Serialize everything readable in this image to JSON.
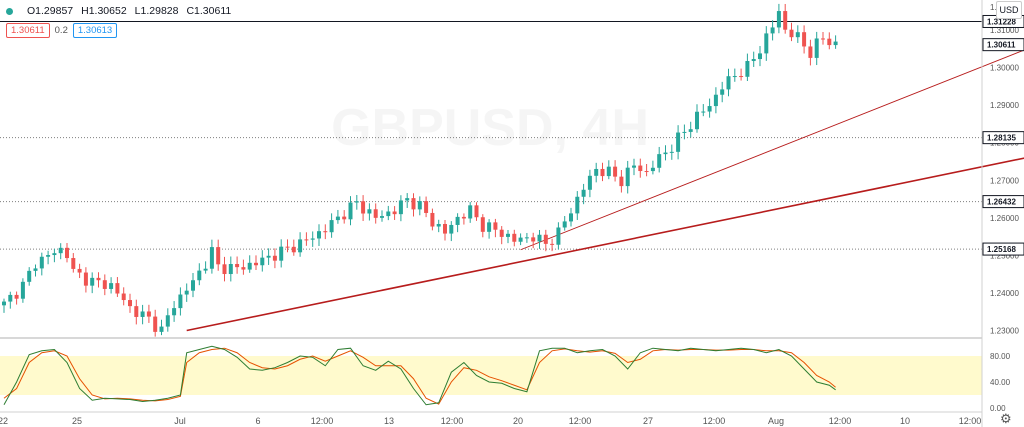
{
  "symbol_watermark": "GBPUSD, 4H",
  "ohlc": {
    "open": "O1.29857",
    "high": "H1.30652",
    "low": "L1.29828",
    "close": "C1.30611"
  },
  "price_row": {
    "bid": "1.30611",
    "spread": "0.2",
    "ask": "1.30613"
  },
  "currency_button": "USD",
  "colors": {
    "up": "#26a69a",
    "down": "#ef5350",
    "trendline": "#b71c1c",
    "stoch_k": "#2e7d32",
    "stoch_d": "#e65100",
    "stoch_band": "#fff9c4"
  },
  "chart_data": {
    "type": "candlestick",
    "price_ylim": [
      1.228,
      1.318
    ],
    "price_ticks": [
      "1.31000",
      "1.30000",
      "1.29000",
      "1.28000",
      "1.27000",
      "1.26000",
      "1.25000",
      "1.24000",
      "1.23000"
    ],
    "horizontal_levels": [
      {
        "value": 1.31228,
        "label": "1.31228",
        "style": "solid"
      },
      {
        "value": 1.28135,
        "label": "1.28135",
        "style": "dotted"
      },
      {
        "value": 1.26432,
        "label": "1.26432",
        "style": "dotted"
      },
      {
        "value": 1.25168,
        "label": "1.25168",
        "style": "dotted"
      }
    ],
    "current_price": {
      "value": 1.30611,
      "label": "1.30611"
    },
    "top_tick_label": "1.32000",
    "x_ticks": [
      "22",
      "25",
      "Jul",
      "6",
      "12:00",
      "13",
      "12:00",
      "20",
      "12:00",
      "27",
      "12:00",
      "Aug",
      "12:00",
      "10",
      "12:00"
    ],
    "close_path": [
      [
        0,
        1.237
      ],
      [
        3,
        1.242
      ],
      [
        5,
        1.248
      ],
      [
        7,
        1.25
      ],
      [
        9,
        1.2515
      ],
      [
        10,
        1.2505
      ],
      [
        11,
        1.2455
      ],
      [
        14,
        1.243
      ],
      [
        17,
        1.242
      ],
      [
        20,
        1.236
      ],
      [
        23,
        1.233
      ],
      [
        25,
        1.23
      ],
      [
        27,
        1.237
      ],
      [
        30,
        1.243
      ],
      [
        32,
        1.248
      ],
      [
        33,
        1.251
      ],
      [
        34,
        1.247
      ],
      [
        37,
        1.2465
      ],
      [
        40,
        1.248
      ],
      [
        44,
        1.251
      ],
      [
        48,
        1.254
      ],
      [
        51,
        1.257
      ],
      [
        53,
        1.26
      ],
      [
        56,
        1.264
      ],
      [
        59,
        1.26
      ],
      [
        62,
        1.262
      ],
      [
        64,
        1.265
      ],
      [
        66,
        1.263
      ],
      [
        68,
        1.259
      ],
      [
        70,
        1.256
      ],
      [
        72,
        1.26
      ],
      [
        74,
        1.262
      ],
      [
        76,
        1.258
      ],
      [
        79,
        1.256
      ],
      [
        81,
        1.254
      ],
      [
        84,
        1.255
      ],
      [
        86,
        1.253
      ],
      [
        88,
        1.256
      ],
      [
        90,
        1.262
      ],
      [
        92,
        1.268
      ],
      [
        94,
        1.273
      ],
      [
        96,
        1.272
      ],
      [
        98,
        1.27
      ],
      [
        100,
        1.274
      ],
      [
        102,
        1.272
      ],
      [
        104,
        1.276
      ],
      [
        106,
        1.279
      ],
      [
        108,
        1.283
      ],
      [
        110,
        1.287
      ],
      [
        112,
        1.29
      ],
      [
        114,
        1.295
      ],
      [
        116,
        1.298
      ],
      [
        118,
        1.3
      ],
      [
        120,
        1.305
      ],
      [
        122,
        1.311
      ],
      [
        123,
        1.315
      ],
      [
        124,
        1.31
      ],
      [
        126,
        1.308
      ],
      [
        128,
        1.304
      ],
      [
        130,
        1.308
      ],
      [
        131,
        1.307
      ],
      [
        132,
        1.306
      ]
    ],
    "trendlines": [
      {
        "from": [
          29,
          1.23
        ],
        "to": [
          197,
          1.288
        ]
      },
      {
        "from": [
          82,
          1.2515
        ],
        "to": [
          197,
          1.328
        ]
      }
    ],
    "stochastic": {
      "ylim": [
        0,
        100
      ],
      "ticks": [
        "80.00",
        "40.00",
        "0.00"
      ],
      "band": [
        20,
        80
      ],
      "k": [
        [
          0,
          5
        ],
        [
          2,
          40
        ],
        [
          4,
          82
        ],
        [
          6,
          88
        ],
        [
          8,
          90
        ],
        [
          10,
          70
        ],
        [
          12,
          30
        ],
        [
          14,
          12
        ],
        [
          16,
          15
        ],
        [
          18,
          14
        ],
        [
          20,
          13
        ],
        [
          22,
          10
        ],
        [
          24,
          12
        ],
        [
          26,
          15
        ],
        [
          28,
          20
        ],
        [
          29,
          85
        ],
        [
          31,
          90
        ],
        [
          33,
          95
        ],
        [
          35,
          90
        ],
        [
          37,
          78
        ],
        [
          39,
          60
        ],
        [
          41,
          58
        ],
        [
          43,
          62
        ],
        [
          45,
          70
        ],
        [
          47,
          80
        ],
        [
          49,
          78
        ],
        [
          51,
          65
        ],
        [
          53,
          90
        ],
        [
          55,
          92
        ],
        [
          57,
          65
        ],
        [
          59,
          58
        ],
        [
          61,
          72
        ],
        [
          63,
          60
        ],
        [
          65,
          30
        ],
        [
          67,
          5
        ],
        [
          69,
          8
        ],
        [
          71,
          55
        ],
        [
          73,
          70
        ],
        [
          75,
          50
        ],
        [
          77,
          40
        ],
        [
          79,
          38
        ],
        [
          81,
          30
        ],
        [
          83,
          25
        ],
        [
          85,
          88
        ],
        [
          87,
          92
        ],
        [
          89,
          92
        ],
        [
          91,
          85
        ],
        [
          93,
          88
        ],
        [
          95,
          90
        ],
        [
          97,
          80
        ],
        [
          99,
          60
        ],
        [
          101,
          85
        ],
        [
          103,
          92
        ],
        [
          105,
          90
        ],
        [
          107,
          88
        ],
        [
          109,
          92
        ],
        [
          111,
          90
        ],
        [
          113,
          88
        ],
        [
          115,
          90
        ],
        [
          117,
          92
        ],
        [
          119,
          90
        ],
        [
          121,
          85
        ],
        [
          123,
          90
        ],
        [
          125,
          80
        ],
        [
          127,
          60
        ],
        [
          129,
          40
        ],
        [
          131,
          35
        ],
        [
          132,
          28
        ]
      ],
      "d": [
        [
          0,
          15
        ],
        [
          2,
          30
        ],
        [
          4,
          70
        ],
        [
          6,
          85
        ],
        [
          8,
          88
        ],
        [
          10,
          80
        ],
        [
          12,
          45
        ],
        [
          14,
          20
        ],
        [
          16,
          14
        ],
        [
          18,
          15
        ],
        [
          20,
          14
        ],
        [
          22,
          12
        ],
        [
          24,
          11
        ],
        [
          26,
          13
        ],
        [
          28,
          18
        ],
        [
          29,
          70
        ],
        [
          31,
          85
        ],
        [
          33,
          90
        ],
        [
          35,
          92
        ],
        [
          37,
          85
        ],
        [
          39,
          70
        ],
        [
          41,
          62
        ],
        [
          43,
          60
        ],
        [
          45,
          65
        ],
        [
          47,
          75
        ],
        [
          49,
          80
        ],
        [
          51,
          72
        ],
        [
          53,
          80
        ],
        [
          55,
          88
        ],
        [
          57,
          78
        ],
        [
          59,
          65
        ],
        [
          61,
          65
        ],
        [
          63,
          65
        ],
        [
          65,
          45
        ],
        [
          67,
          15
        ],
        [
          69,
          6
        ],
        [
          71,
          40
        ],
        [
          73,
          62
        ],
        [
          75,
          58
        ],
        [
          77,
          48
        ],
        [
          79,
          42
        ],
        [
          81,
          35
        ],
        [
          83,
          28
        ],
        [
          85,
          70
        ],
        [
          87,
          88
        ],
        [
          89,
          91
        ],
        [
          91,
          88
        ],
        [
          93,
          86
        ],
        [
          95,
          88
        ],
        [
          97,
          84
        ],
        [
          99,
          70
        ],
        [
          101,
          75
        ],
        [
          103,
          88
        ],
        [
          105,
          90
        ],
        [
          107,
          89
        ],
        [
          109,
          90
        ],
        [
          111,
          90
        ],
        [
          113,
          89
        ],
        [
          115,
          89
        ],
        [
          117,
          90
        ],
        [
          119,
          90
        ],
        [
          121,
          88
        ],
        [
          123,
          88
        ],
        [
          125,
          85
        ],
        [
          127,
          70
        ],
        [
          129,
          50
        ],
        [
          131,
          40
        ],
        [
          132,
          32
        ]
      ]
    }
  }
}
